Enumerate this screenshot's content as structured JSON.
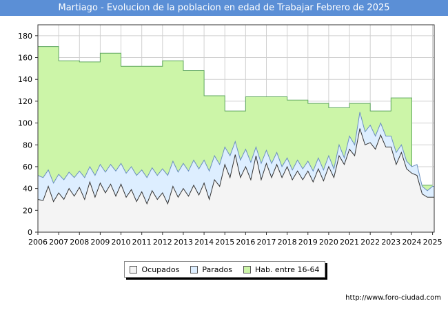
{
  "header": {
    "title": "Martiago - Evolucion de la poblacion en edad de Trabajar Febrero de 2025"
  },
  "footer": {
    "source": "http://www.foro-ciudad.com"
  },
  "colors": {
    "title_bg": "#5b8fd6",
    "hab": "#ccf5a8",
    "hab_line": "#5fa85f",
    "parados": "#ddeeff",
    "parados_line": "#6a8fbf",
    "ocupados": "#f4f4f4",
    "ocupados_line": "#333333",
    "grid": "#d0d0d0",
    "plot_bg": "#ffffff"
  },
  "chart_data": {
    "type": "area",
    "title": "Martiago - Evolucion de la poblacion en edad de Trabajar Febrero de 2025",
    "xlabel": "",
    "ylabel": "",
    "xlim": [
      2006,
      2025.08
    ],
    "ylim": [
      0,
      190
    ],
    "yticks": [
      0,
      20,
      40,
      60,
      80,
      100,
      120,
      140,
      160,
      180
    ],
    "xticks": [
      "2006",
      "2007",
      "2008",
      "2009",
      "2010",
      "2011",
      "2012",
      "2013",
      "2014",
      "2015",
      "2016",
      "2017",
      "2018",
      "2019",
      "2020",
      "2021",
      "2022",
      "2023",
      "2024",
      "2025"
    ],
    "grid": true,
    "legend": [
      "Ocupados",
      "Parados",
      "Hab. entre 16-64"
    ],
    "legend_position": "bottom",
    "series": [
      {
        "name": "Hab. entre 16-64",
        "step": true,
        "points": [
          [
            2006,
            170
          ],
          [
            2007,
            157
          ],
          [
            2008,
            156
          ],
          [
            2009,
            164
          ],
          [
            2010,
            152
          ],
          [
            2011,
            152
          ],
          [
            2012,
            157
          ],
          [
            2013,
            148
          ],
          [
            2014,
            125
          ],
          [
            2015,
            111
          ],
          [
            2016,
            124
          ],
          [
            2017,
            124
          ],
          [
            2018,
            121
          ],
          [
            2019,
            118
          ],
          [
            2020,
            114
          ],
          [
            2021,
            118
          ],
          [
            2022,
            111
          ],
          [
            2023,
            123
          ],
          [
            2024,
            43
          ],
          [
            2025,
            43
          ]
        ]
      },
      {
        "name": "Parados (stack top)",
        "points": [
          [
            2006.0,
            52
          ],
          [
            2006.25,
            50
          ],
          [
            2006.5,
            57
          ],
          [
            2006.75,
            45
          ],
          [
            2007.0,
            53
          ],
          [
            2007.25,
            48
          ],
          [
            2007.5,
            55
          ],
          [
            2007.75,
            50
          ],
          [
            2008.0,
            56
          ],
          [
            2008.25,
            50
          ],
          [
            2008.5,
            60
          ],
          [
            2008.75,
            52
          ],
          [
            2009.0,
            62
          ],
          [
            2009.25,
            55
          ],
          [
            2009.5,
            62
          ],
          [
            2009.75,
            56
          ],
          [
            2010.0,
            63
          ],
          [
            2010.25,
            54
          ],
          [
            2010.5,
            60
          ],
          [
            2010.75,
            52
          ],
          [
            2011.0,
            57
          ],
          [
            2011.25,
            50
          ],
          [
            2011.5,
            59
          ],
          [
            2011.75,
            52
          ],
          [
            2012.0,
            58
          ],
          [
            2012.25,
            52
          ],
          [
            2012.5,
            65
          ],
          [
            2012.75,
            55
          ],
          [
            2013.0,
            63
          ],
          [
            2013.25,
            56
          ],
          [
            2013.5,
            66
          ],
          [
            2013.75,
            58
          ],
          [
            2014.0,
            66
          ],
          [
            2014.25,
            56
          ],
          [
            2014.5,
            70
          ],
          [
            2014.75,
            62
          ],
          [
            2015.0,
            78
          ],
          [
            2015.25,
            70
          ],
          [
            2015.5,
            83
          ],
          [
            2015.75,
            66
          ],
          [
            2016.0,
            76
          ],
          [
            2016.25,
            64
          ],
          [
            2016.5,
            78
          ],
          [
            2016.75,
            63
          ],
          [
            2017.0,
            75
          ],
          [
            2017.25,
            63
          ],
          [
            2017.5,
            73
          ],
          [
            2017.75,
            60
          ],
          [
            2018.0,
            68
          ],
          [
            2018.25,
            57
          ],
          [
            2018.5,
            66
          ],
          [
            2018.75,
            58
          ],
          [
            2019.0,
            65
          ],
          [
            2019.25,
            56
          ],
          [
            2019.5,
            68
          ],
          [
            2019.75,
            57
          ],
          [
            2020.0,
            70
          ],
          [
            2020.25,
            58
          ],
          [
            2020.5,
            80
          ],
          [
            2020.75,
            68
          ],
          [
            2021.0,
            88
          ],
          [
            2021.25,
            80
          ],
          [
            2021.5,
            110
          ],
          [
            2021.75,
            92
          ],
          [
            2022.0,
            98
          ],
          [
            2022.25,
            88
          ],
          [
            2022.5,
            100
          ],
          [
            2022.75,
            88
          ],
          [
            2023.0,
            88
          ],
          [
            2023.25,
            73
          ],
          [
            2023.5,
            80
          ],
          [
            2023.75,
            65
          ],
          [
            2024.0,
            60
          ],
          [
            2024.25,
            62
          ],
          [
            2024.5,
            42
          ],
          [
            2024.75,
            38
          ],
          [
            2025.0,
            42
          ],
          [
            2025.08,
            42
          ]
        ]
      },
      {
        "name": "Ocupados",
        "points": [
          [
            2006.0,
            30
          ],
          [
            2006.25,
            29
          ],
          [
            2006.5,
            42
          ],
          [
            2006.75,
            28
          ],
          [
            2007.0,
            36
          ],
          [
            2007.25,
            30
          ],
          [
            2007.5,
            40
          ],
          [
            2007.75,
            33
          ],
          [
            2008.0,
            41
          ],
          [
            2008.25,
            30
          ],
          [
            2008.5,
            46
          ],
          [
            2008.75,
            32
          ],
          [
            2009.0,
            45
          ],
          [
            2009.25,
            36
          ],
          [
            2009.5,
            44
          ],
          [
            2009.75,
            33
          ],
          [
            2010.0,
            44
          ],
          [
            2010.25,
            32
          ],
          [
            2010.5,
            39
          ],
          [
            2010.75,
            28
          ],
          [
            2011.0,
            37
          ],
          [
            2011.25,
            26
          ],
          [
            2011.5,
            38
          ],
          [
            2011.75,
            30
          ],
          [
            2012.0,
            36
          ],
          [
            2012.25,
            26
          ],
          [
            2012.5,
            42
          ],
          [
            2012.75,
            32
          ],
          [
            2013.0,
            40
          ],
          [
            2013.25,
            33
          ],
          [
            2013.5,
            43
          ],
          [
            2013.75,
            34
          ],
          [
            2014.0,
            45
          ],
          [
            2014.25,
            30
          ],
          [
            2014.5,
            48
          ],
          [
            2014.75,
            42
          ],
          [
            2015.0,
            62
          ],
          [
            2015.25,
            50
          ],
          [
            2015.5,
            71
          ],
          [
            2015.75,
            50
          ],
          [
            2016.0,
            60
          ],
          [
            2016.25,
            48
          ],
          [
            2016.5,
            70
          ],
          [
            2016.75,
            48
          ],
          [
            2017.0,
            63
          ],
          [
            2017.25,
            50
          ],
          [
            2017.5,
            62
          ],
          [
            2017.75,
            50
          ],
          [
            2018.0,
            60
          ],
          [
            2018.25,
            48
          ],
          [
            2018.5,
            56
          ],
          [
            2018.75,
            48
          ],
          [
            2019.0,
            56
          ],
          [
            2019.25,
            46
          ],
          [
            2019.5,
            58
          ],
          [
            2019.75,
            47
          ],
          [
            2020.0,
            60
          ],
          [
            2020.25,
            50
          ],
          [
            2020.5,
            70
          ],
          [
            2020.75,
            62
          ],
          [
            2021.0,
            76
          ],
          [
            2021.25,
            70
          ],
          [
            2021.5,
            95
          ],
          [
            2021.75,
            80
          ],
          [
            2022.0,
            82
          ],
          [
            2022.25,
            76
          ],
          [
            2022.5,
            89
          ],
          [
            2022.75,
            78
          ],
          [
            2023.0,
            78
          ],
          [
            2023.25,
            62
          ],
          [
            2023.5,
            73
          ],
          [
            2023.75,
            58
          ],
          [
            2024.0,
            54
          ],
          [
            2024.25,
            52
          ],
          [
            2024.5,
            35
          ],
          [
            2024.75,
            32
          ],
          [
            2025.0,
            32
          ],
          [
            2025.08,
            32
          ]
        ]
      }
    ]
  }
}
